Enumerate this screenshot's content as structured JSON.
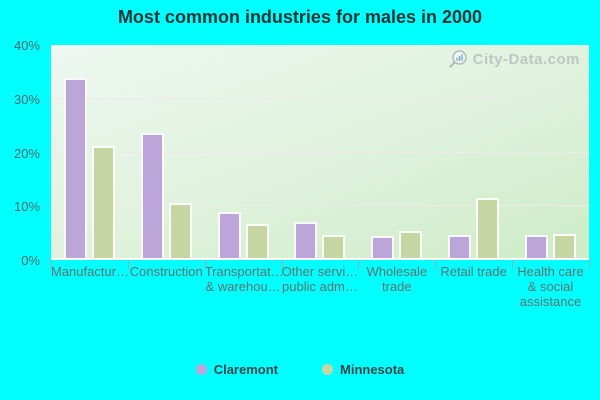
{
  "title": "Most common industries for males in 2000",
  "watermark": {
    "text": "City-Data.com",
    "logo_icon": "magnifier-with-bars-icon",
    "color": "#b7bfc3"
  },
  "colors": {
    "page_background": "#00ffff",
    "plot_background_top": "#edf7f0",
    "plot_background_bottom": "#cdecc7",
    "gridline": "#f0e7ee",
    "claremont_bar": "#bca6d9",
    "minnesota_bar": "#c5d6a2",
    "axis_text": "#5d7472",
    "title_text": "#243536"
  },
  "y_axis": {
    "ticks": [
      {
        "label": "0%",
        "value": 0
      },
      {
        "label": "10%",
        "value": 10
      },
      {
        "label": "20%",
        "value": 20
      },
      {
        "label": "30%",
        "value": 30
      },
      {
        "label": "40%",
        "value": 40
      }
    ],
    "max": 40,
    "gridline_values": [
      10,
      20,
      30
    ]
  },
  "x_axis": {
    "labels": [
      [
        "Manufactur…"
      ],
      [
        "Construction"
      ],
      [
        "Transportat…",
        "& warehou…"
      ],
      [
        "Other servi…",
        "public adm…"
      ],
      [
        "Wholesale",
        "trade"
      ],
      [
        "Retail trade"
      ],
      [
        "Health care",
        "& social",
        "assistance"
      ]
    ]
  },
  "legend": {
    "items": [
      {
        "label": "Claremont",
        "color": "#bca6d9"
      },
      {
        "label": "Minnesota",
        "color": "#c5d6a2"
      }
    ]
  },
  "chart_data": {
    "type": "bar",
    "title": "Most common industries for males in 2000",
    "categories": [
      "Manufactur…",
      "Construction",
      "Transportat… & warehou…",
      "Other servi… public adm…",
      "Wholesale trade",
      "Retail trade",
      "Health care & social assistance"
    ],
    "series": [
      {
        "name": "Claremont",
        "color": "#bca6d9",
        "values": [
          33.8,
          23.4,
          8.7,
          6.8,
          4.2,
          4.3,
          4.3
        ]
      },
      {
        "name": "Minnesota",
        "color": "#c5d6a2",
        "values": [
          21.0,
          10.4,
          6.3,
          4.3,
          5.0,
          11.3,
          4.6
        ]
      }
    ],
    "xlabel": "",
    "ylabel": "",
    "ylim": [
      0,
      40
    ],
    "yticks_percent": true,
    "grid": true,
    "legend_position": "bottom"
  }
}
